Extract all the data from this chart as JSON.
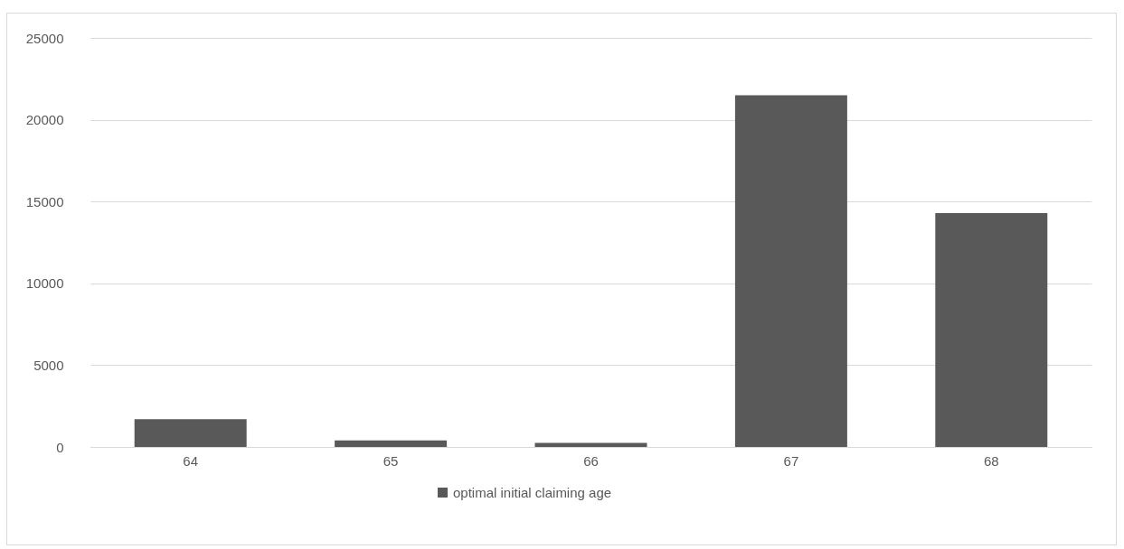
{
  "chart_data": {
    "type": "bar",
    "categories": [
      "64",
      "65",
      "66",
      "67",
      "68"
    ],
    "series": [
      {
        "name": "optimal initial claiming age",
        "color": "#595959",
        "values": [
          1700,
          400,
          250,
          21500,
          14300
        ]
      }
    ],
    "ylim": [
      0,
      25000
    ],
    "yticks": [
      0,
      5000,
      10000,
      15000,
      20000,
      25000
    ],
    "grid": "y",
    "legend": "bottom"
  }
}
